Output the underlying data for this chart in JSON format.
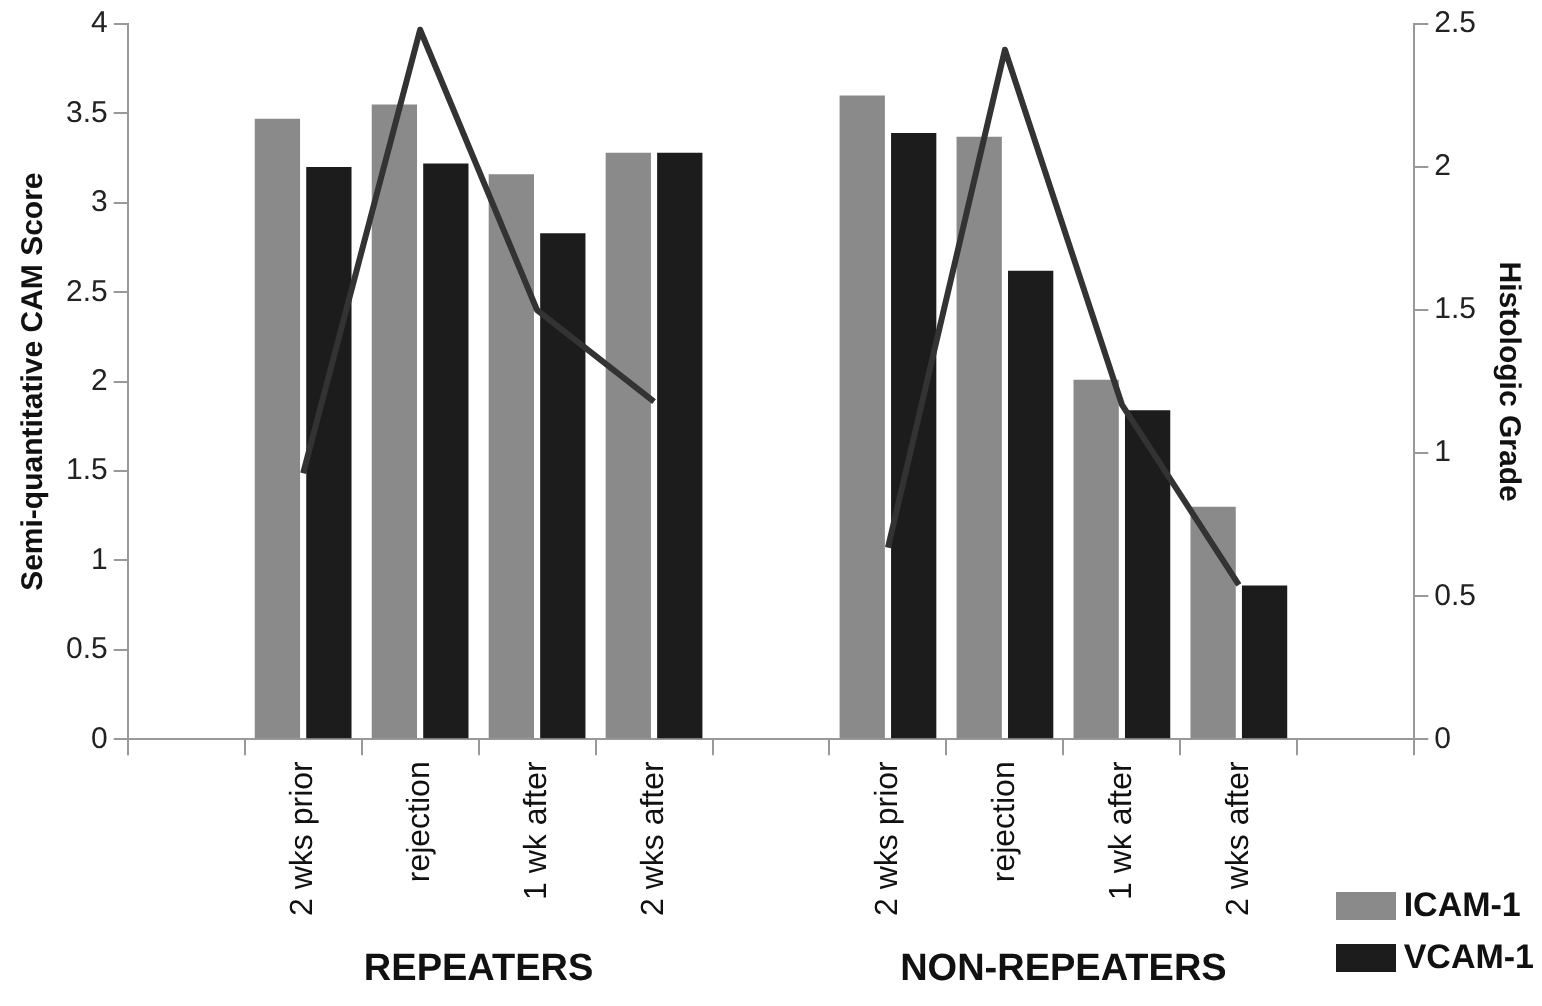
{
  "chart_data": {
    "type": "bar",
    "ylabel": "Semi-quantitative CAM Score",
    "y2label": "Histologic Grade",
    "categories": [
      null,
      "2 wks prior",
      "rejection",
      "1 wk after",
      "2 wks after",
      null,
      "2 wks prior",
      "rejection",
      "1 wk after",
      "2 wks after",
      null
    ],
    "series": [
      {
        "name": "ICAM-1",
        "color": "#8a8a8a",
        "values": [
          null,
          3.47,
          3.55,
          3.16,
          3.28,
          null,
          3.6,
          3.37,
          2.01,
          1.3,
          null
        ]
      },
      {
        "name": "VCAM-1",
        "color": "#1c1c1c",
        "values": [
          null,
          3.2,
          3.22,
          2.83,
          3.28,
          null,
          3.39,
          2.62,
          1.84,
          0.86,
          null
        ]
      },
      {
        "type": "line",
        "axis": "y2",
        "color": "#333333",
        "values": [
          null,
          0.93,
          2.48,
          1.5,
          1.18,
          null,
          0.67,
          2.41,
          1.17,
          0.54,
          null
        ]
      }
    ],
    "ylim": [
      0,
      4
    ],
    "yticks": [
      0,
      0.5,
      1,
      1.5,
      2,
      2.5,
      3,
      3.5,
      4
    ],
    "y2lim": [
      0,
      2.5
    ],
    "y2ticks": [
      0,
      0.5,
      1,
      1.5,
      2,
      2.5
    ],
    "annotations": [
      "REPEATERS",
      "NON-REPEATERS"
    ],
    "grid": false,
    "legend": "bottom right",
    "marker": "none",
    "line_style": "solid"
  }
}
